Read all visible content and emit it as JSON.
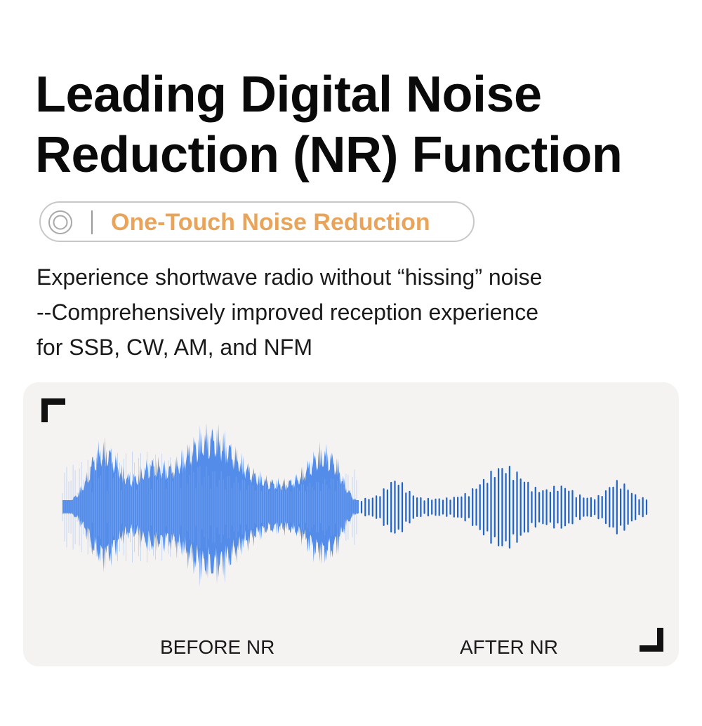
{
  "title": {
    "line1": "Leading Digital Noise",
    "line2": "Reduction (NR) Function"
  },
  "badge": {
    "icon": "radio-button-icon",
    "label": "One-Touch Noise Reduction",
    "label_color": "#e8a45a"
  },
  "description": {
    "line1": "Experience shortwave radio without “hissing” noise",
    "line2": "--Comprehensively improved reception experience",
    "line3": "for SSB, CW, AM, and NFM"
  },
  "comparison": {
    "before_label": "BEFORE NR",
    "after_label": "AFTER NR",
    "before_wave_color": "#4a86e8",
    "after_wave_color": "#1f63c9",
    "panel_color": "#f4f3f2"
  }
}
